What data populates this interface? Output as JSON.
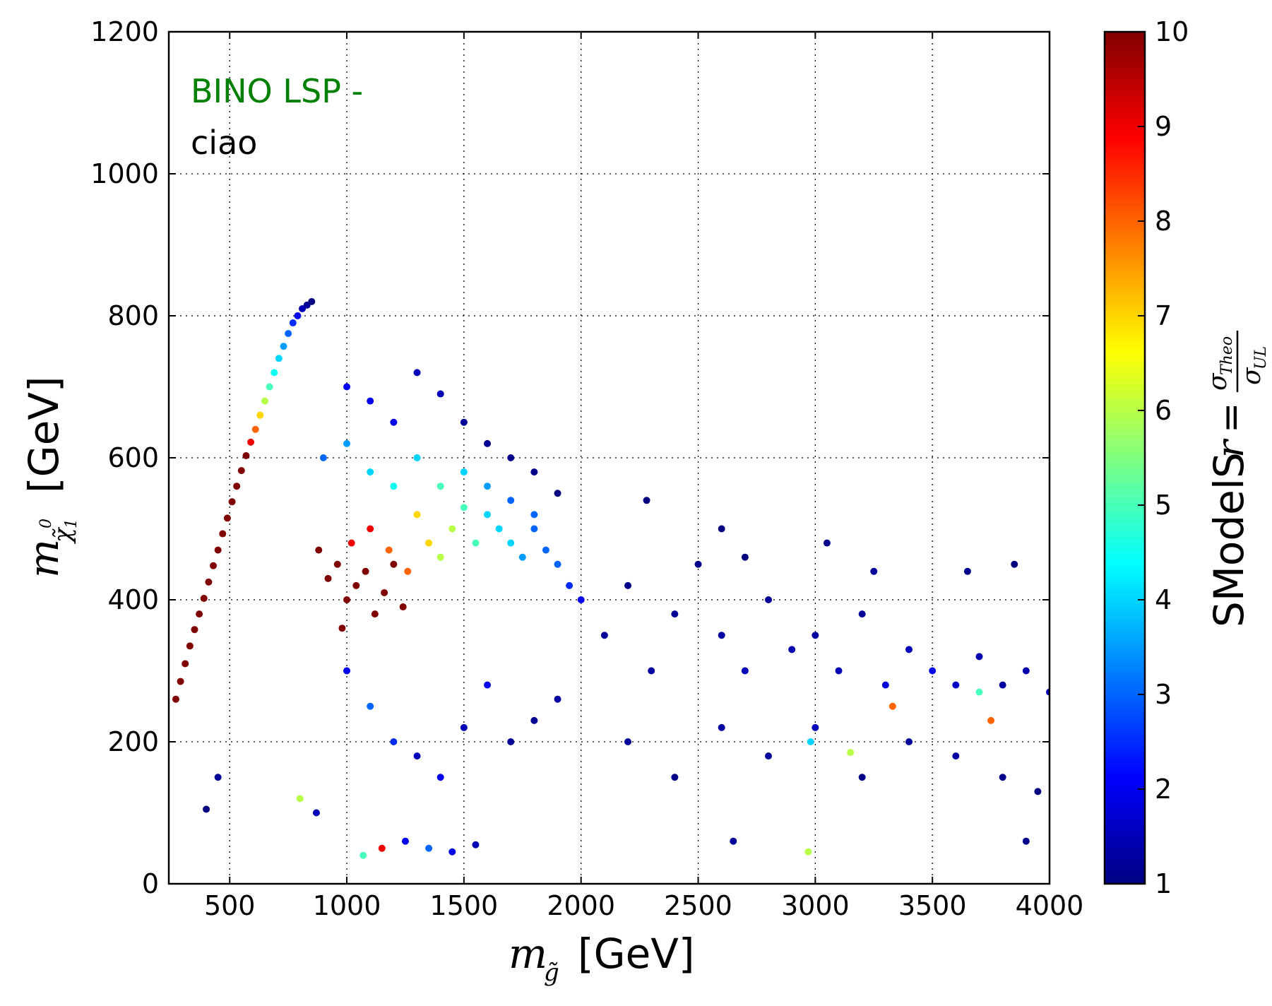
{
  "chart_data": {
    "type": "scatter",
    "title": "",
    "xlabel": {
      "symbol": "m",
      "subscript": "g̃",
      "unit": "[GeV]"
    },
    "ylabel": {
      "symbol": "m",
      "subscript": "χ̃",
      "sub_sup": "0",
      "sub_sub": "1",
      "unit": "[GeV]"
    },
    "xlim": [
      240,
      4000
    ],
    "ylim": [
      0,
      1200
    ],
    "x_ticks": [
      "500",
      "1000",
      "1500",
      "2000",
      "2500",
      "3000",
      "3500",
      "4000"
    ],
    "x_tick_values": [
      500,
      1000,
      1500,
      2000,
      2500,
      3000,
      3500,
      4000
    ],
    "y_ticks": [
      "0",
      "200",
      "400",
      "600",
      "800",
      "1000",
      "1200"
    ],
    "y_tick_values": [
      0,
      200,
      400,
      600,
      800,
      1000,
      1200
    ],
    "grid": true,
    "grid_style": "dotted",
    "annotations": [
      {
        "text": "BINO LSP -",
        "color": "#008000"
      },
      {
        "text": "ciao",
        "color": "#000000"
      }
    ],
    "colorbar": {
      "label_text": "SModelS",
      "label_formula": {
        "lhs": "r",
        "eq": "=",
        "numerator": "σ",
        "numerator_sub": "Theo",
        "denominator": "σ",
        "denominator_sub": "UL"
      },
      "range": [
        1,
        10
      ],
      "ticks": [
        "1",
        "2",
        "3",
        "4",
        "5",
        "6",
        "7",
        "8",
        "9",
        "10"
      ],
      "tick_values": [
        1,
        2,
        3,
        4,
        5,
        6,
        7,
        8,
        9,
        10
      ],
      "colormap": "jet",
      "colors": [
        "#000080",
        "#0000ff",
        "#0080ff",
        "#00ffff",
        "#80ff80",
        "#ffff00",
        "#ff8000",
        "#ff0000",
        "#800000"
      ]
    },
    "points_note_free": true,
    "points": [
      [
        270,
        260,
        10
      ],
      [
        290,
        285,
        10
      ],
      [
        310,
        310,
        10
      ],
      [
        330,
        335,
        10
      ],
      [
        350,
        358,
        10
      ],
      [
        370,
        380,
        10
      ],
      [
        390,
        402,
        10
      ],
      [
        410,
        425,
        10
      ],
      [
        430,
        448,
        10
      ],
      [
        450,
        470,
        10
      ],
      [
        470,
        493,
        10
      ],
      [
        490,
        515,
        10
      ],
      [
        510,
        538,
        10
      ],
      [
        530,
        560,
        10
      ],
      [
        550,
        582,
        10
      ],
      [
        570,
        603,
        10
      ],
      [
        590,
        622,
        9
      ],
      [
        610,
        640,
        8
      ],
      [
        630,
        660,
        7
      ],
      [
        650,
        680,
        6
      ],
      [
        670,
        700,
        5
      ],
      [
        690,
        720,
        4.5
      ],
      [
        710,
        740,
        4
      ],
      [
        730,
        757,
        3.5
      ],
      [
        750,
        775,
        3
      ],
      [
        770,
        790,
        2.5
      ],
      [
        790,
        800,
        2
      ],
      [
        810,
        810,
        1.5
      ],
      [
        830,
        815,
        1.2
      ],
      [
        850,
        820,
        1
      ],
      [
        880,
        470,
        10
      ],
      [
        920,
        430,
        10
      ],
      [
        960,
        450,
        10
      ],
      [
        1000,
        400,
        10
      ],
      [
        1040,
        420,
        10
      ],
      [
        1080,
        440,
        10
      ],
      [
        1120,
        380,
        10
      ],
      [
        1160,
        410,
        10
      ],
      [
        1200,
        450,
        10
      ],
      [
        1240,
        390,
        10
      ],
      [
        980,
        360,
        10
      ],
      [
        1020,
        480,
        9
      ],
      [
        1100,
        500,
        9
      ],
      [
        1180,
        470,
        8
      ],
      [
        1260,
        440,
        8
      ],
      [
        1300,
        520,
        7
      ],
      [
        1350,
        480,
        7
      ],
      [
        1400,
        460,
        6
      ],
      [
        1450,
        500,
        6
      ],
      [
        1500,
        530,
        5
      ],
      [
        1550,
        480,
        5
      ],
      [
        1600,
        520,
        4
      ],
      [
        1650,
        500,
        4
      ],
      [
        1700,
        480,
        4
      ],
      [
        1750,
        460,
        3.5
      ],
      [
        1800,
        500,
        3
      ],
      [
        1850,
        470,
        3
      ],
      [
        1900,
        450,
        3
      ],
      [
        1950,
        420,
        2.5
      ],
      [
        2000,
        400,
        2
      ],
      [
        1000,
        700,
        2
      ],
      [
        1100,
        680,
        2
      ],
      [
        1200,
        650,
        2
      ],
      [
        1300,
        720,
        1.5
      ],
      [
        1400,
        690,
        1.5
      ],
      [
        1500,
        650,
        1.2
      ],
      [
        1600,
        620,
        1.2
      ],
      [
        1700,
        600,
        1.1
      ],
      [
        1800,
        580,
        1.1
      ],
      [
        1900,
        550,
        1
      ],
      [
        900,
        600,
        3
      ],
      [
        1000,
        620,
        3.5
      ],
      [
        1100,
        580,
        4
      ],
      [
        1200,
        560,
        4.5
      ],
      [
        1300,
        600,
        4
      ],
      [
        1400,
        560,
        5
      ],
      [
        1500,
        580,
        4
      ],
      [
        1600,
        560,
        3.5
      ],
      [
        1700,
        540,
        3
      ],
      [
        1800,
        520,
        3
      ],
      [
        1000,
        300,
        2
      ],
      [
        1100,
        250,
        3
      ],
      [
        1200,
        200,
        2.5
      ],
      [
        1300,
        180,
        1.5
      ],
      [
        1400,
        150,
        2
      ],
      [
        1500,
        220,
        1.5
      ],
      [
        1600,
        280,
        2
      ],
      [
        1700,
        200,
        1.2
      ],
      [
        1800,
        230,
        1.2
      ],
      [
        1900,
        260,
        1.3
      ],
      [
        1150,
        50,
        9
      ],
      [
        1250,
        60,
        2
      ],
      [
        1350,
        50,
        3
      ],
      [
        1450,
        45,
        2
      ],
      [
        1550,
        55,
        1.5
      ],
      [
        400,
        105,
        1
      ],
      [
        450,
        150,
        1.2
      ],
      [
        800,
        120,
        6
      ],
      [
        870,
        100,
        1.5
      ],
      [
        1070,
        40,
        5
      ],
      [
        2100,
        350,
        1.2
      ],
      [
        2200,
        420,
        1.1
      ],
      [
        2300,
        300,
        1.3
      ],
      [
        2400,
        380,
        1.2
      ],
      [
        2500,
        450,
        1.1
      ],
      [
        2600,
        350,
        1.3
      ],
      [
        2700,
        300,
        1.5
      ],
      [
        2800,
        400,
        1.2
      ],
      [
        2900,
        330,
        1.4
      ],
      [
        3000,
        350,
        1.3
      ],
      [
        3100,
        300,
        1.5
      ],
      [
        3200,
        380,
        1.2
      ],
      [
        3300,
        280,
        1.8
      ],
      [
        3400,
        330,
        1.5
      ],
      [
        3500,
        300,
        2
      ],
      [
        3600,
        280,
        1.6
      ],
      [
        3700,
        320,
        1.4
      ],
      [
        3800,
        280,
        1.3
      ],
      [
        3900,
        300,
        1.4
      ],
      [
        4000,
        270,
        1.5
      ],
      [
        2200,
        200,
        1.2
      ],
      [
        2400,
        150,
        1.1
      ],
      [
        2600,
        220,
        1.3
      ],
      [
        2800,
        180,
        1.2
      ],
      [
        3000,
        220,
        1.5
      ],
      [
        3200,
        150,
        1.1
      ],
      [
        3400,
        200,
        1.2
      ],
      [
        3600,
        180,
        1.3
      ],
      [
        3800,
        150,
        1.1
      ],
      [
        3950,
        130,
        1
      ],
      [
        2600,
        500,
        1
      ],
      [
        2700,
        460,
        1
      ],
      [
        3050,
        480,
        1.1
      ],
      [
        3250,
        440,
        1.2
      ],
      [
        3650,
        440,
        1.1
      ],
      [
        3850,
        450,
        1
      ],
      [
        2280,
        540,
        1
      ],
      [
        2650,
        60,
        1.2
      ],
      [
        2970,
        45,
        6
      ],
      [
        3900,
        60,
        1.1
      ],
      [
        3750,
        230,
        8
      ],
      [
        3330,
        250,
        8
      ],
      [
        2980,
        200,
        4
      ],
      [
        3150,
        185,
        6
      ],
      [
        3700,
        270,
        5
      ]
    ]
  }
}
